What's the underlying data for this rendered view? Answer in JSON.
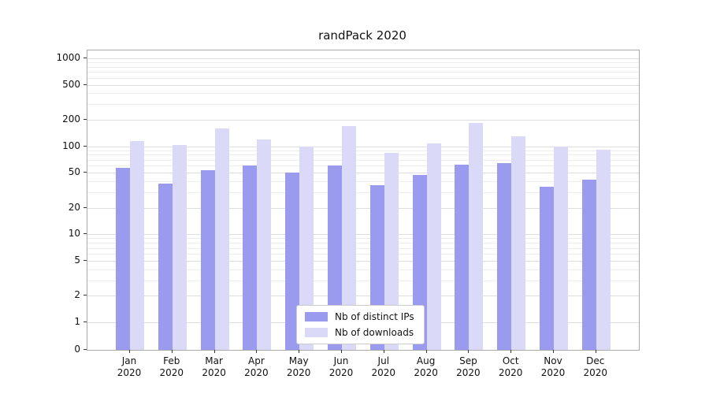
{
  "chart_data": {
    "type": "bar",
    "title": "randPack 2020",
    "categories": [
      "Jan",
      "Feb",
      "Mar",
      "Apr",
      "May",
      "Jun",
      "Jul",
      "Aug",
      "Sep",
      "Oct",
      "Nov",
      "Dec"
    ],
    "category_year": "2020",
    "series": [
      {
        "name": "Nb of distinct IPs",
        "color": "#9a9aee",
        "values": [
          57,
          38,
          54,
          60,
          50,
          60,
          36,
          47,
          62,
          65,
          35,
          42
        ]
      },
      {
        "name": "Nb of downloads",
        "color": "#dadaf8",
        "values": [
          115,
          103,
          160,
          120,
          100,
          170,
          85,
          107,
          185,
          130,
          100,
          92
        ]
      }
    ],
    "yscale": "symlog",
    "yticks": [
      0,
      1,
      2,
      5,
      10,
      20,
      50,
      100,
      200,
      500,
      1000
    ],
    "ylim": [
      0,
      1250
    ],
    "xlabel": "",
    "ylabel": "",
    "grid": "horizontal major and minor gridlines",
    "legend_position": "inside plot, lower center"
  }
}
